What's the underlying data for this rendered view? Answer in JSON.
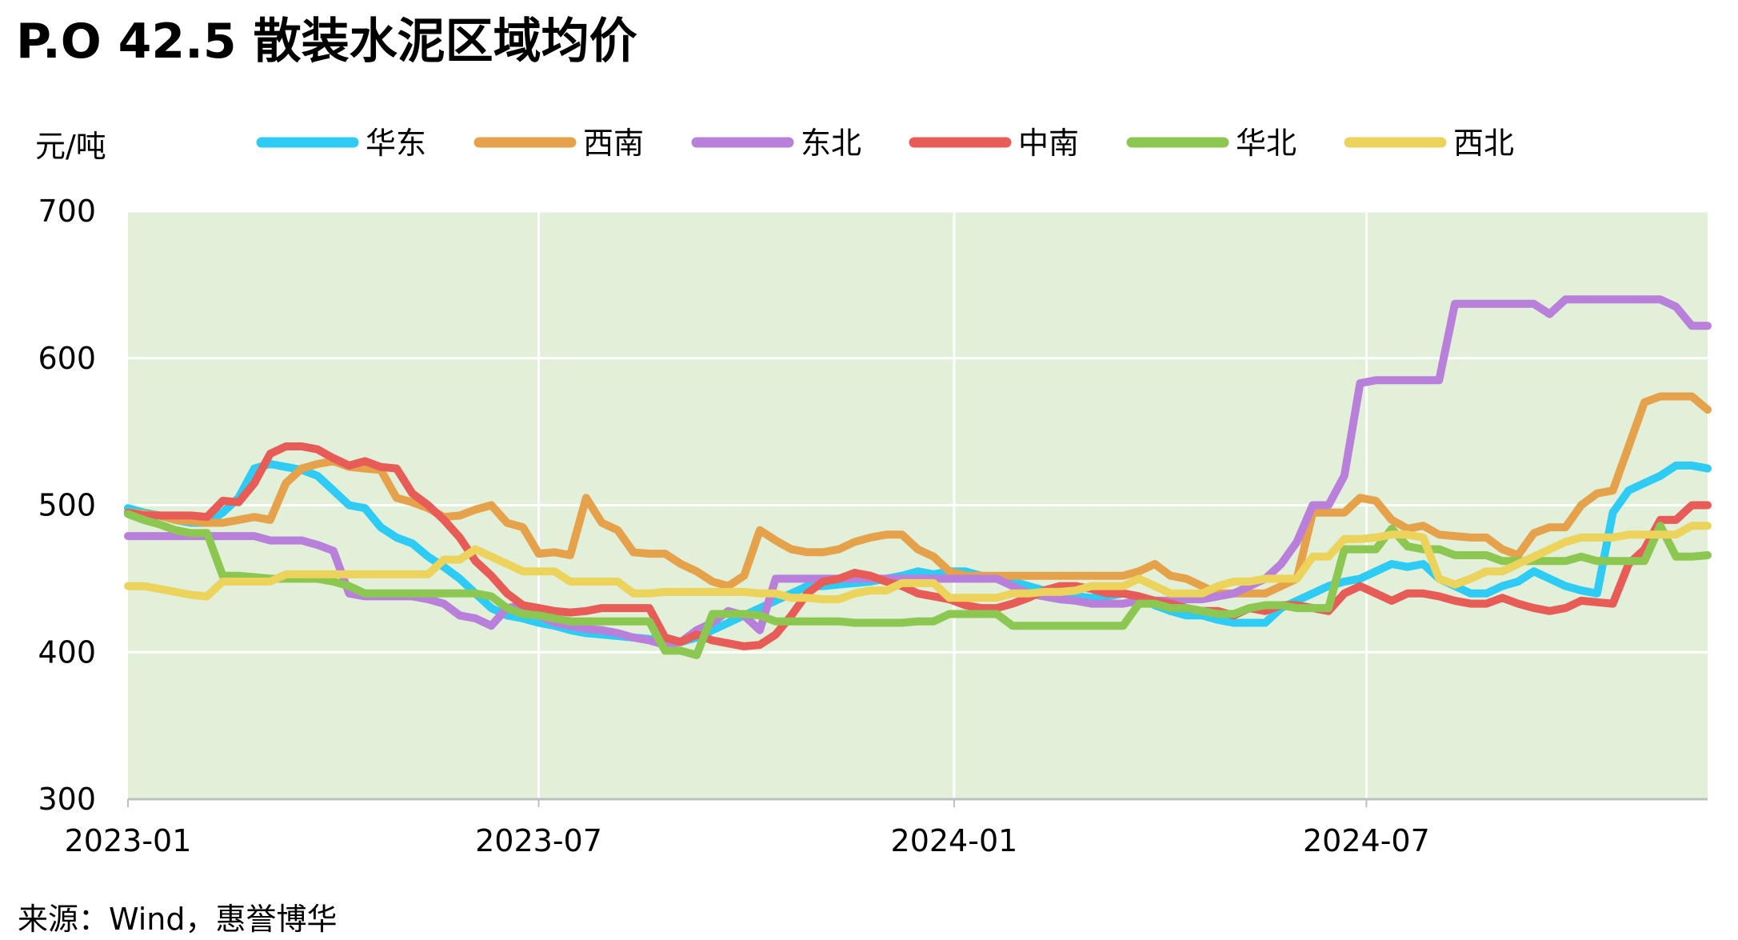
{
  "chart_data": {
    "type": "line",
    "title": "P.O 42.5 散装水泥区域均价",
    "ylabel": "元/吨",
    "xlabel": "",
    "source": "来源：Wind，惠誉博华",
    "ylim": [
      300,
      700
    ],
    "yticks": [
      "700",
      "600",
      "500",
      "400",
      "300"
    ],
    "xticks": [
      {
        "label": "2023-01",
        "x": 0
      },
      {
        "label": "2023-07",
        "x": 26
      },
      {
        "label": "2024-01",
        "x": 52.3
      },
      {
        "label": "2024-07",
        "x": 78.4
      }
    ],
    "xmax": 100,
    "plot_background": "#e2efd9",
    "grid": true,
    "legend_position": "top",
    "x": [
      0,
      1,
      2,
      3,
      4,
      5,
      6,
      7,
      8,
      9,
      10,
      11,
      12,
      13,
      14,
      15,
      16,
      17,
      18,
      19,
      20,
      21,
      22,
      23,
      24,
      25,
      26,
      27,
      28,
      29,
      30,
      31,
      32,
      33,
      34,
      35,
      36,
      37,
      38,
      39,
      40,
      41,
      42,
      43,
      44,
      45,
      46,
      47,
      48,
      49,
      50,
      51,
      52,
      53,
      54,
      55,
      56,
      57,
      58,
      59,
      60,
      61,
      62,
      63,
      64,
      65,
      66,
      67,
      68,
      69,
      70,
      71,
      72,
      73,
      74,
      75,
      76,
      77,
      78,
      79,
      80,
      81,
      82,
      83,
      84,
      85,
      86,
      87,
      88,
      89,
      90,
      91,
      92,
      93,
      94,
      95,
      96,
      97,
      98,
      99,
      100
    ],
    "series": [
      {
        "name": "华东",
        "color": "#2ecbf5",
        "values": [
          498,
          495,
          493,
          490,
          488,
          488,
          495,
          505,
          525,
          528,
          526,
          524,
          520,
          510,
          500,
          498,
          485,
          478,
          474,
          465,
          458,
          450,
          440,
          430,
          425,
          423,
          420,
          418,
          415,
          413,
          412,
          411,
          410,
          409,
          408,
          407,
          410,
          415,
          420,
          425,
          430,
          435,
          440,
          445,
          445,
          446,
          447,
          448,
          450,
          452,
          455,
          453,
          455,
          455,
          452,
          450,
          448,
          445,
          442,
          440,
          438,
          437,
          438,
          440,
          438,
          432,
          428,
          425,
          425,
          422,
          420,
          420,
          420,
          430,
          435,
          440,
          445,
          448,
          450,
          455,
          460,
          458,
          460,
          450,
          445,
          440,
          440,
          445,
          448,
          455,
          450,
          445,
          442,
          440,
          495,
          510,
          515,
          520,
          527,
          527,
          525
        ]
      },
      {
        "name": "西南",
        "color": "#e5a24a",
        "values": [
          495,
          494,
          493,
          490,
          489,
          488,
          488,
          490,
          492,
          490,
          515,
          525,
          528,
          530,
          526,
          525,
          524,
          505,
          502,
          498,
          492,
          493,
          497,
          500,
          488,
          485,
          467,
          468,
          466,
          505,
          488,
          483,
          468,
          467,
          467,
          460,
          455,
          448,
          445,
          452,
          483,
          476,
          470,
          468,
          468,
          470,
          475,
          478,
          480,
          480,
          470,
          465,
          455,
          452,
          452,
          452,
          452,
          452,
          452,
          452,
          452,
          452,
          452,
          452,
          455,
          460,
          452,
          450,
          445,
          440,
          440,
          440,
          440,
          445,
          450,
          495,
          495,
          495,
          505,
          503,
          490,
          484,
          486,
          480,
          479,
          478,
          478,
          470,
          466,
          481,
          485,
          485,
          500,
          508,
          510,
          540,
          570,
          574,
          574,
          574,
          565
        ]
      },
      {
        "name": "东北",
        "color": "#b87fdb",
        "values": [
          479,
          479,
          479,
          479,
          479,
          479,
          479,
          479,
          479,
          476,
          476,
          476,
          473,
          469,
          440,
          438,
          438,
          438,
          438,
          436,
          433,
          425,
          423,
          418,
          430,
          432,
          425,
          420,
          418,
          416,
          415,
          413,
          410,
          408,
          405,
          407,
          415,
          420,
          428,
          425,
          415,
          450,
          450,
          450,
          450,
          450,
          450,
          450,
          450,
          450,
          450,
          450,
          450,
          450,
          450,
          450,
          445,
          440,
          438,
          436,
          435,
          433,
          433,
          433,
          435,
          435,
          435,
          436,
          436,
          438,
          440,
          445,
          450,
          460,
          475,
          500,
          500,
          520,
          583,
          585,
          585,
          585,
          585,
          585,
          637,
          637,
          637,
          637,
          637,
          637,
          630,
          640,
          640,
          640,
          640,
          640,
          640,
          640,
          635,
          622,
          622
        ]
      },
      {
        "name": "中南",
        "color": "#e85c58",
        "values": [
          495,
          493,
          493,
          493,
          493,
          492,
          503,
          502,
          515,
          535,
          540,
          540,
          538,
          532,
          527,
          530,
          526,
          525,
          508,
          500,
          490,
          478,
          462,
          452,
          440,
          432,
          430,
          428,
          427,
          428,
          430,
          430,
          430,
          430,
          410,
          407,
          412,
          408,
          406,
          404,
          405,
          412,
          425,
          440,
          448,
          450,
          454,
          452,
          448,
          445,
          440,
          438,
          436,
          432,
          430,
          430,
          433,
          437,
          442,
          445,
          445,
          443,
          440,
          440,
          438,
          435,
          433,
          430,
          428,
          428,
          425,
          430,
          428,
          432,
          432,
          430,
          428,
          440,
          445,
          440,
          435,
          440,
          440,
          438,
          435,
          433,
          433,
          437,
          433,
          430,
          428,
          430,
          435,
          434,
          433,
          460,
          470,
          490,
          490,
          500,
          500
        ]
      },
      {
        "name": "华北",
        "color": "#8cc752",
        "values": [
          494,
          490,
          487,
          483,
          481,
          481,
          452,
          452,
          451,
          450,
          450,
          450,
          450,
          448,
          445,
          440,
          440,
          440,
          440,
          440,
          440,
          440,
          440,
          438,
          430,
          426,
          425,
          423,
          421,
          421,
          421,
          421,
          421,
          421,
          401,
          401,
          398,
          426,
          426,
          426,
          425,
          421,
          421,
          421,
          421,
          421,
          420,
          420,
          420,
          420,
          421,
          421,
          426,
          426,
          426,
          426,
          418,
          418,
          418,
          418,
          418,
          418,
          418,
          418,
          433,
          433,
          430,
          430,
          428,
          426,
          426,
          430,
          432,
          432,
          430,
          430,
          430,
          470,
          470,
          470,
          484,
          472,
          470,
          470,
          466,
          466,
          466,
          462,
          462,
          462,
          462,
          462,
          465,
          462,
          462,
          462,
          462,
          486,
          465,
          465,
          466
        ]
      },
      {
        "name": "西北",
        "color": "#ecd35c",
        "values": [
          445,
          445,
          443,
          441,
          439,
          438,
          448,
          448,
          448,
          448,
          453,
          453,
          453,
          453,
          453,
          453,
          453,
          453,
          453,
          453,
          463,
          463,
          470,
          465,
          460,
          455,
          455,
          455,
          448,
          448,
          448,
          448,
          440,
          440,
          441,
          441,
          441,
          441,
          441,
          441,
          440,
          440,
          437,
          437,
          436,
          436,
          440,
          442,
          442,
          447,
          447,
          447,
          437,
          437,
          437,
          437,
          440,
          440,
          441,
          441,
          442,
          445,
          445,
          445,
          450,
          445,
          440,
          440,
          440,
          445,
          448,
          448,
          450,
          450,
          450,
          465,
          465,
          477,
          477,
          478,
          480,
          480,
          478,
          450,
          446,
          450,
          455,
          455,
          460,
          465,
          470,
          475,
          478,
          478,
          478,
          480,
          480,
          480,
          480,
          486,
          486
        ]
      }
    ]
  }
}
